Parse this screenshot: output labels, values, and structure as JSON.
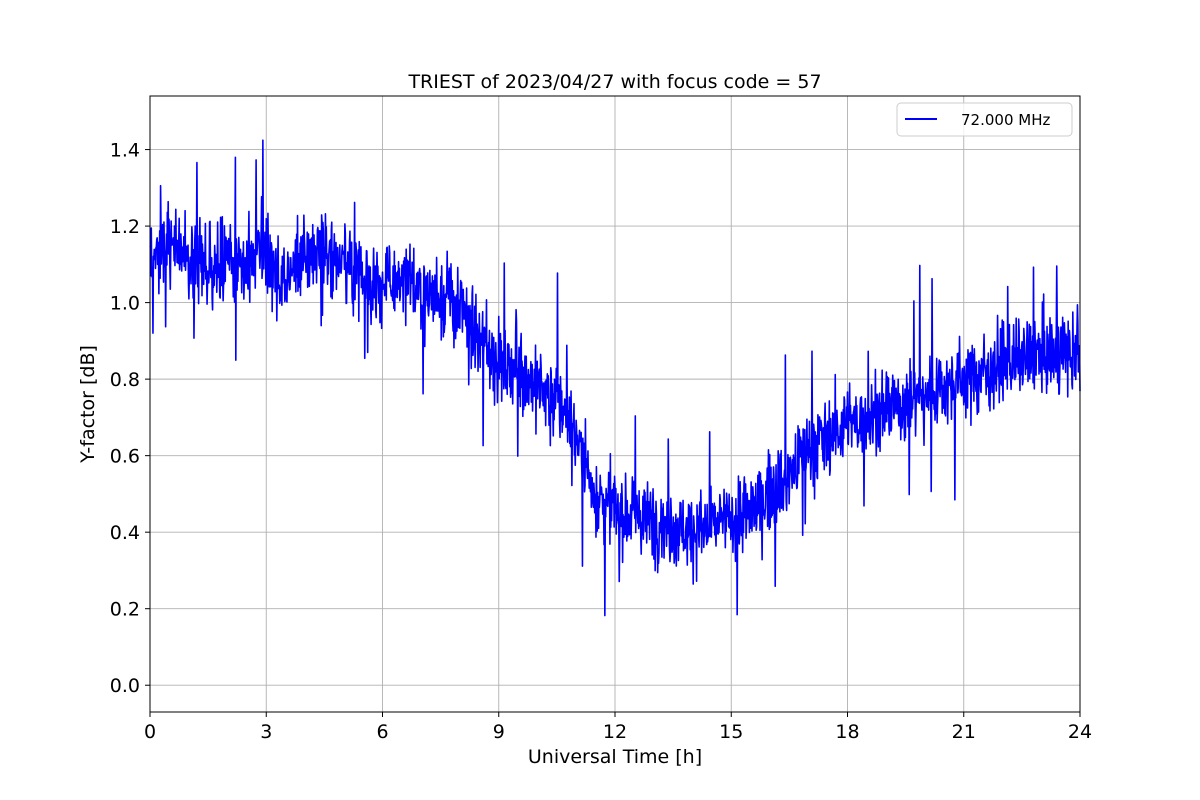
{
  "chart_data": {
    "type": "line",
    "title": "TRIEST of 2023/04/27 with focus code = 57",
    "xlabel": "Universal Time [h]",
    "ylabel": "Y-factor [dB]",
    "xlim": [
      0,
      24
    ],
    "ylim": [
      -0.07,
      1.54
    ],
    "xticks": [
      0,
      3,
      6,
      9,
      12,
      15,
      18,
      21,
      24
    ],
    "xtick_labels": [
      "0",
      "3",
      "6",
      "9",
      "12",
      "15",
      "18",
      "21",
      "24"
    ],
    "yticks": [
      0.0,
      0.2,
      0.4,
      0.6,
      0.8,
      1.0,
      1.2,
      1.4
    ],
    "ytick_labels": [
      "0.0",
      "0.2",
      "0.4",
      "0.6",
      "0.8",
      "1.0",
      "1.2",
      "1.4"
    ],
    "grid": true,
    "legend_position": "top-right",
    "series": [
      {
        "name": "72.000 MHz",
        "color": "#0000ff",
        "x": [
          0,
          0.5,
          1,
          1.5,
          2,
          2.5,
          3,
          3.5,
          4,
          4.5,
          5,
          5.5,
          6,
          6.5,
          7,
          7.5,
          8,
          8.5,
          9,
          9.5,
          10,
          10.5,
          11,
          11.5,
          12,
          12.5,
          13,
          13.5,
          14,
          14.5,
          15,
          15.5,
          16,
          16.5,
          17,
          17.5,
          18,
          18.5,
          19,
          19.5,
          20,
          20.5,
          21,
          21.5,
          22,
          22.5,
          23,
          23.5,
          24
        ],
        "y": [
          1.12,
          1.15,
          1.12,
          1.1,
          1.12,
          1.1,
          1.12,
          1.05,
          1.13,
          1.15,
          1.1,
          1.08,
          1.05,
          1.05,
          1.04,
          1.02,
          0.98,
          0.9,
          0.85,
          0.82,
          0.78,
          0.75,
          0.65,
          0.5,
          0.46,
          0.44,
          0.43,
          0.42,
          0.4,
          0.42,
          0.43,
          0.45,
          0.5,
          0.55,
          0.62,
          0.66,
          0.68,
          0.7,
          0.72,
          0.74,
          0.76,
          0.78,
          0.8,
          0.82,
          0.84,
          0.85,
          0.86,
          0.87,
          0.85
        ]
      }
    ]
  }
}
